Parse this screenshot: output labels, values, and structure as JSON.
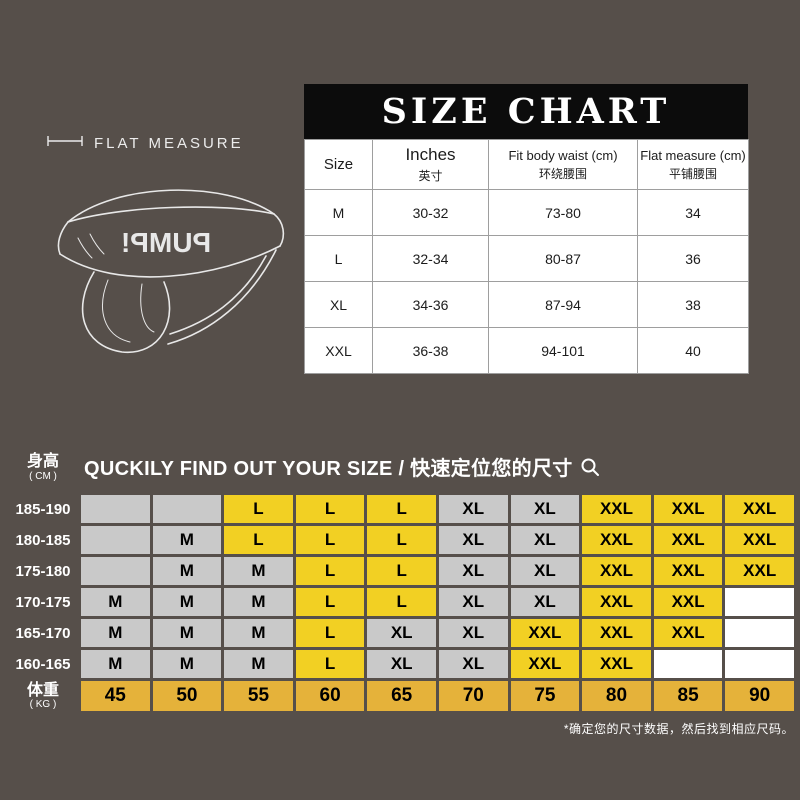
{
  "colors": {
    "background": "#564f4a",
    "yellow_cell": "#f2d023",
    "yellow_weight": "#e5b23a",
    "gray_cell": "#c9c9c9",
    "white_cell": "#ffffff",
    "table_header_bg": "#0c0c0c"
  },
  "flat_measure": {
    "label": "FLAT MEASURE",
    "brand_mirrored": "PUMP!"
  },
  "size_chart": {
    "title": "SIZE CHART",
    "header": {
      "size": "Size",
      "inches_en": "Inches",
      "inches_zh": "英寸",
      "fit_en": "Fit body waist (cm)",
      "fit_zh": "环绕腰围",
      "flat_en": "Flat measure (cm)",
      "flat_zh": "平铺腰围"
    },
    "rows": [
      {
        "size": "M",
        "inches": "30-32",
        "fit": "73-80",
        "flat": "34"
      },
      {
        "size": "L",
        "inches": "32-34",
        "fit": "80-87",
        "flat": "36"
      },
      {
        "size": "XL",
        "inches": "34-36",
        "fit": "87-94",
        "flat": "38"
      },
      {
        "size": "XXL",
        "inches": "36-38",
        "fit": "94-101",
        "flat": "40"
      }
    ]
  },
  "finder": {
    "height_label": "身高",
    "height_unit": "( CM )",
    "title": "QUCKILY FIND OUT YOUR SIZE / 快速定位您的尺寸",
    "heights": [
      "185-190",
      "180-185",
      "175-180",
      "170-175",
      "165-170",
      "160-165"
    ],
    "grid": [
      [
        {
          "t": "",
          "bg": "gray"
        },
        {
          "t": "",
          "bg": "gray"
        },
        {
          "t": "L",
          "bg": "yellow"
        },
        {
          "t": "L",
          "bg": "yellow"
        },
        {
          "t": "L",
          "bg": "yellow"
        },
        {
          "t": "XL",
          "bg": "gray"
        },
        {
          "t": "XL",
          "bg": "gray"
        },
        {
          "t": "XXL",
          "bg": "yellow"
        },
        {
          "t": "XXL",
          "bg": "yellow"
        },
        {
          "t": "XXL",
          "bg": "yellow"
        }
      ],
      [
        {
          "t": "",
          "bg": "gray"
        },
        {
          "t": "M",
          "bg": "gray"
        },
        {
          "t": "L",
          "bg": "yellow"
        },
        {
          "t": "L",
          "bg": "yellow"
        },
        {
          "t": "L",
          "bg": "yellow"
        },
        {
          "t": "XL",
          "bg": "gray"
        },
        {
          "t": "XL",
          "bg": "gray"
        },
        {
          "t": "XXL",
          "bg": "yellow"
        },
        {
          "t": "XXL",
          "bg": "yellow"
        },
        {
          "t": "XXL",
          "bg": "yellow"
        }
      ],
      [
        {
          "t": "",
          "bg": "gray"
        },
        {
          "t": "M",
          "bg": "gray"
        },
        {
          "t": "M",
          "bg": "gray"
        },
        {
          "t": "L",
          "bg": "yellow"
        },
        {
          "t": "L",
          "bg": "yellow"
        },
        {
          "t": "XL",
          "bg": "gray"
        },
        {
          "t": "XL",
          "bg": "gray"
        },
        {
          "t": "XXL",
          "bg": "yellow"
        },
        {
          "t": "XXL",
          "bg": "yellow"
        },
        {
          "t": "XXL",
          "bg": "yellow"
        }
      ],
      [
        {
          "t": "M",
          "bg": "gray"
        },
        {
          "t": "M",
          "bg": "gray"
        },
        {
          "t": "M",
          "bg": "gray"
        },
        {
          "t": "L",
          "bg": "yellow"
        },
        {
          "t": "L",
          "bg": "yellow"
        },
        {
          "t": "XL",
          "bg": "gray"
        },
        {
          "t": "XL",
          "bg": "gray"
        },
        {
          "t": "XXL",
          "bg": "yellow"
        },
        {
          "t": "XXL",
          "bg": "yellow"
        },
        {
          "t": "",
          "bg": "white"
        }
      ],
      [
        {
          "t": "M",
          "bg": "gray"
        },
        {
          "t": "M",
          "bg": "gray"
        },
        {
          "t": "M",
          "bg": "gray"
        },
        {
          "t": "L",
          "bg": "yellow"
        },
        {
          "t": "XL",
          "bg": "gray"
        },
        {
          "t": "XL",
          "bg": "gray"
        },
        {
          "t": "XXL",
          "bg": "yellow"
        },
        {
          "t": "XXL",
          "bg": "yellow"
        },
        {
          "t": "XXL",
          "bg": "yellow"
        },
        {
          "t": "",
          "bg": "white"
        }
      ],
      [
        {
          "t": "M",
          "bg": "gray"
        },
        {
          "t": "M",
          "bg": "gray"
        },
        {
          "t": "M",
          "bg": "gray"
        },
        {
          "t": "L",
          "bg": "yellow"
        },
        {
          "t": "XL",
          "bg": "gray"
        },
        {
          "t": "XL",
          "bg": "gray"
        },
        {
          "t": "XXL",
          "bg": "yellow"
        },
        {
          "t": "XXL",
          "bg": "yellow"
        },
        {
          "t": "",
          "bg": "white"
        },
        {
          "t": "",
          "bg": "white"
        }
      ]
    ],
    "weight_label": "体重",
    "weight_unit": "( KG )",
    "weights": [
      "45",
      "50",
      "55",
      "60",
      "65",
      "70",
      "75",
      "80",
      "85",
      "90"
    ],
    "footnote": "*确定您的尺寸数据，然后找到相应尺码。"
  }
}
